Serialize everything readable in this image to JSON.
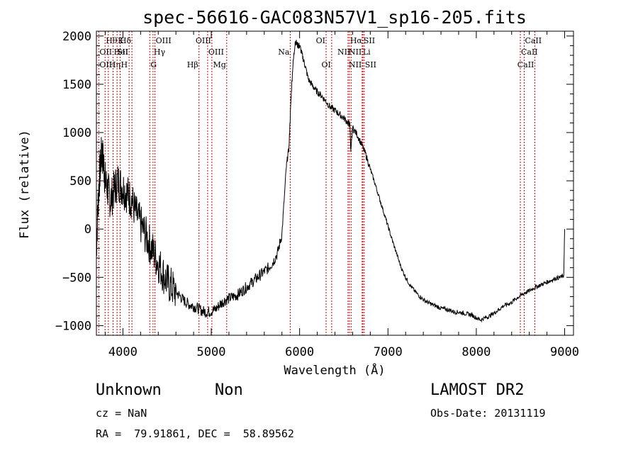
{
  "chart_data": {
    "type": "line",
    "title": "spec-56616-GAC083N57V1_sp16-205.fits",
    "xlabel": "Wavelength (Å)",
    "ylabel": "Flux (relative)",
    "xlim": [
      3700,
      9100
    ],
    "ylim": [
      -1100,
      2050
    ],
    "xticks": [
      4000,
      5000,
      6000,
      7000,
      8000,
      9000
    ],
    "yticks": [
      -1000,
      -500,
      0,
      500,
      1000,
      1500,
      2000
    ],
    "xtick_labels": [
      "4000",
      "5000",
      "6000",
      "7000",
      "8000",
      "9000"
    ],
    "ytick_labels": [
      "−1000",
      "−500",
      "0",
      "500",
      "1000",
      "1500",
      "2000"
    ],
    "grid": false,
    "line_color": "#000000",
    "marker_color": "#cc0000",
    "series": [
      {
        "x": [
          3700,
          3720,
          3740,
          3760,
          3780,
          3800,
          3830,
          3860,
          3900,
          3940,
          3980,
          4020,
          4060,
          4100,
          4150,
          4200,
          4250,
          4300,
          4350,
          4400,
          4450,
          4500,
          4550,
          4600,
          4650,
          4700,
          4750,
          4800,
          4850,
          4900,
          4950,
          5000,
          5050,
          5100,
          5150,
          5200,
          5250,
          5300,
          5350,
          5400,
          5450,
          5500,
          5550,
          5600,
          5650,
          5700,
          5750,
          5800,
          5850,
          5880,
          5900,
          5920,
          5950,
          5980,
          6000,
          6030,
          6060,
          6100,
          6150,
          6200,
          6250,
          6300,
          6350,
          6400,
          6450,
          6500,
          6550,
          6570,
          6580,
          6600,
          6650,
          6700,
          6750,
          6800,
          6850,
          6900,
          6950,
          7000,
          7050,
          7100,
          7150,
          7200,
          7250,
          7300,
          7350,
          7400,
          7450,
          7500,
          7550,
          7600,
          7650,
          7700,
          7750,
          7800,
          7850,
          7900,
          7950,
          8000,
          8050,
          8100,
          8150,
          8200,
          8250,
          8300,
          8350,
          8400,
          8450,
          8500,
          8550,
          8600,
          8650,
          8700,
          8750,
          8800,
          8850,
          8900,
          8950,
          8990,
          9000
        ],
        "y": [
          -200,
          300,
          600,
          800,
          700,
          500,
          400,
          300,
          400,
          500,
          450,
          400,
          350,
          300,
          150,
          50,
          -50,
          -150,
          -250,
          -350,
          -450,
          -550,
          -600,
          -650,
          -700,
          -750,
          -780,
          -800,
          -820,
          -850,
          -860,
          -850,
          -830,
          -780,
          -740,
          -720,
          -700,
          -680,
          -640,
          -600,
          -560,
          -520,
          -480,
          -440,
          -400,
          -340,
          -250,
          -50,
          650,
          850,
          1300,
          1650,
          1950,
          1900,
          1900,
          1800,
          1700,
          1550,
          1480,
          1420,
          1380,
          1320,
          1260,
          1230,
          1190,
          1150,
          1100,
          1080,
          800,
          1050,
          980,
          880,
          770,
          620,
          480,
          330,
          180,
          30,
          -120,
          -260,
          -400,
          -500,
          -580,
          -640,
          -690,
          -730,
          -760,
          -780,
          -800,
          -820,
          -830,
          -840,
          -860,
          -860,
          -870,
          -880,
          -890,
          -920,
          -940,
          -920,
          -900,
          -870,
          -840,
          -800,
          -780,
          -760,
          -720,
          -690,
          -660,
          -640,
          -610,
          -590,
          -570,
          -550,
          -530,
          -510,
          -500,
          -480,
          0
        ]
      }
    ],
    "line_markers": [
      {
        "label": "Hθ",
        "x": 3798,
        "row": 0,
        "side": "R"
      },
      {
        "label": "OII",
        "x": 3727,
        "row": 1,
        "side": "R"
      },
      {
        "label": "OII",
        "x": 3727,
        "row": 2,
        "side": "R"
      },
      {
        "label": "Hη",
        "x": 3835,
        "row": 2,
        "side": "R"
      },
      {
        "label": "HeI",
        "x": 3889,
        "row": 1,
        "side": "R"
      },
      {
        "label": "K",
        "x": 3934,
        "row": 0,
        "side": "R"
      },
      {
        "label": "H",
        "x": 3969,
        "row": 2,
        "side": "R"
      },
      {
        "label": "SII",
        "x": 4070,
        "row": 1,
        "side": "L"
      },
      {
        "label": "Hδ",
        "x": 4102,
        "row": 0,
        "side": "L"
      },
      {
        "label": "G",
        "x": 4304,
        "row": 2,
        "side": "R"
      },
      {
        "label": "Hγ",
        "x": 4341,
        "row": 1,
        "side": "R"
      },
      {
        "label": "OIII",
        "x": 4363,
        "row": 0,
        "side": "R"
      },
      {
        "label": "Hβ",
        "x": 4861,
        "row": 2,
        "side": "L"
      },
      {
        "label": "OIII",
        "x": 4959,
        "row": 1,
        "side": "R"
      },
      {
        "label": "OIII",
        "x": 5007,
        "row": 0,
        "side": "L"
      },
      {
        "label": "Mg",
        "x": 5175,
        "row": 2,
        "side": "L"
      },
      {
        "label": "Na",
        "x": 5894,
        "row": 1,
        "side": "L"
      },
      {
        "label": "OI",
        "x": 6300,
        "row": 0,
        "side": "L"
      },
      {
        "label": "OI",
        "x": 6363,
        "row": 2,
        "side": "L"
      },
      {
        "label": "NII",
        "x": 6548,
        "row": 1,
        "side": "R"
      },
      {
        "label": "NII",
        "x": 6548,
        "row": 2,
        "side": "R"
      },
      {
        "label": "Hα",
        "x": 6563,
        "row": 0,
        "side": "R"
      },
      {
        "label": "NII",
        "x": 6583,
        "row": 1,
        "side": "L"
      },
      {
        "label": "Li",
        "x": 6708,
        "row": 1,
        "side": "R"
      },
      {
        "label": "SII",
        "x": 6716,
        "row": 0,
        "side": "R"
      },
      {
        "label": "SII",
        "x": 6731,
        "row": 2,
        "side": "R"
      },
      {
        "label": "CaII",
        "x": 8498,
        "row": 1,
        "side": "R"
      },
      {
        "label": "CaII",
        "x": 8542,
        "row": 0,
        "side": "R"
      },
      {
        "label": "CaII",
        "x": 8662,
        "row": 2,
        "side": "L"
      }
    ]
  },
  "info": {
    "class_label": "Unknown",
    "subclass_label": "Non",
    "cz": "cz = NaN",
    "coords": "RA =  79.91861, DEC =  58.89562",
    "survey": "LAMOST DR2",
    "obs_date": "Obs-Date: 20131119"
  }
}
